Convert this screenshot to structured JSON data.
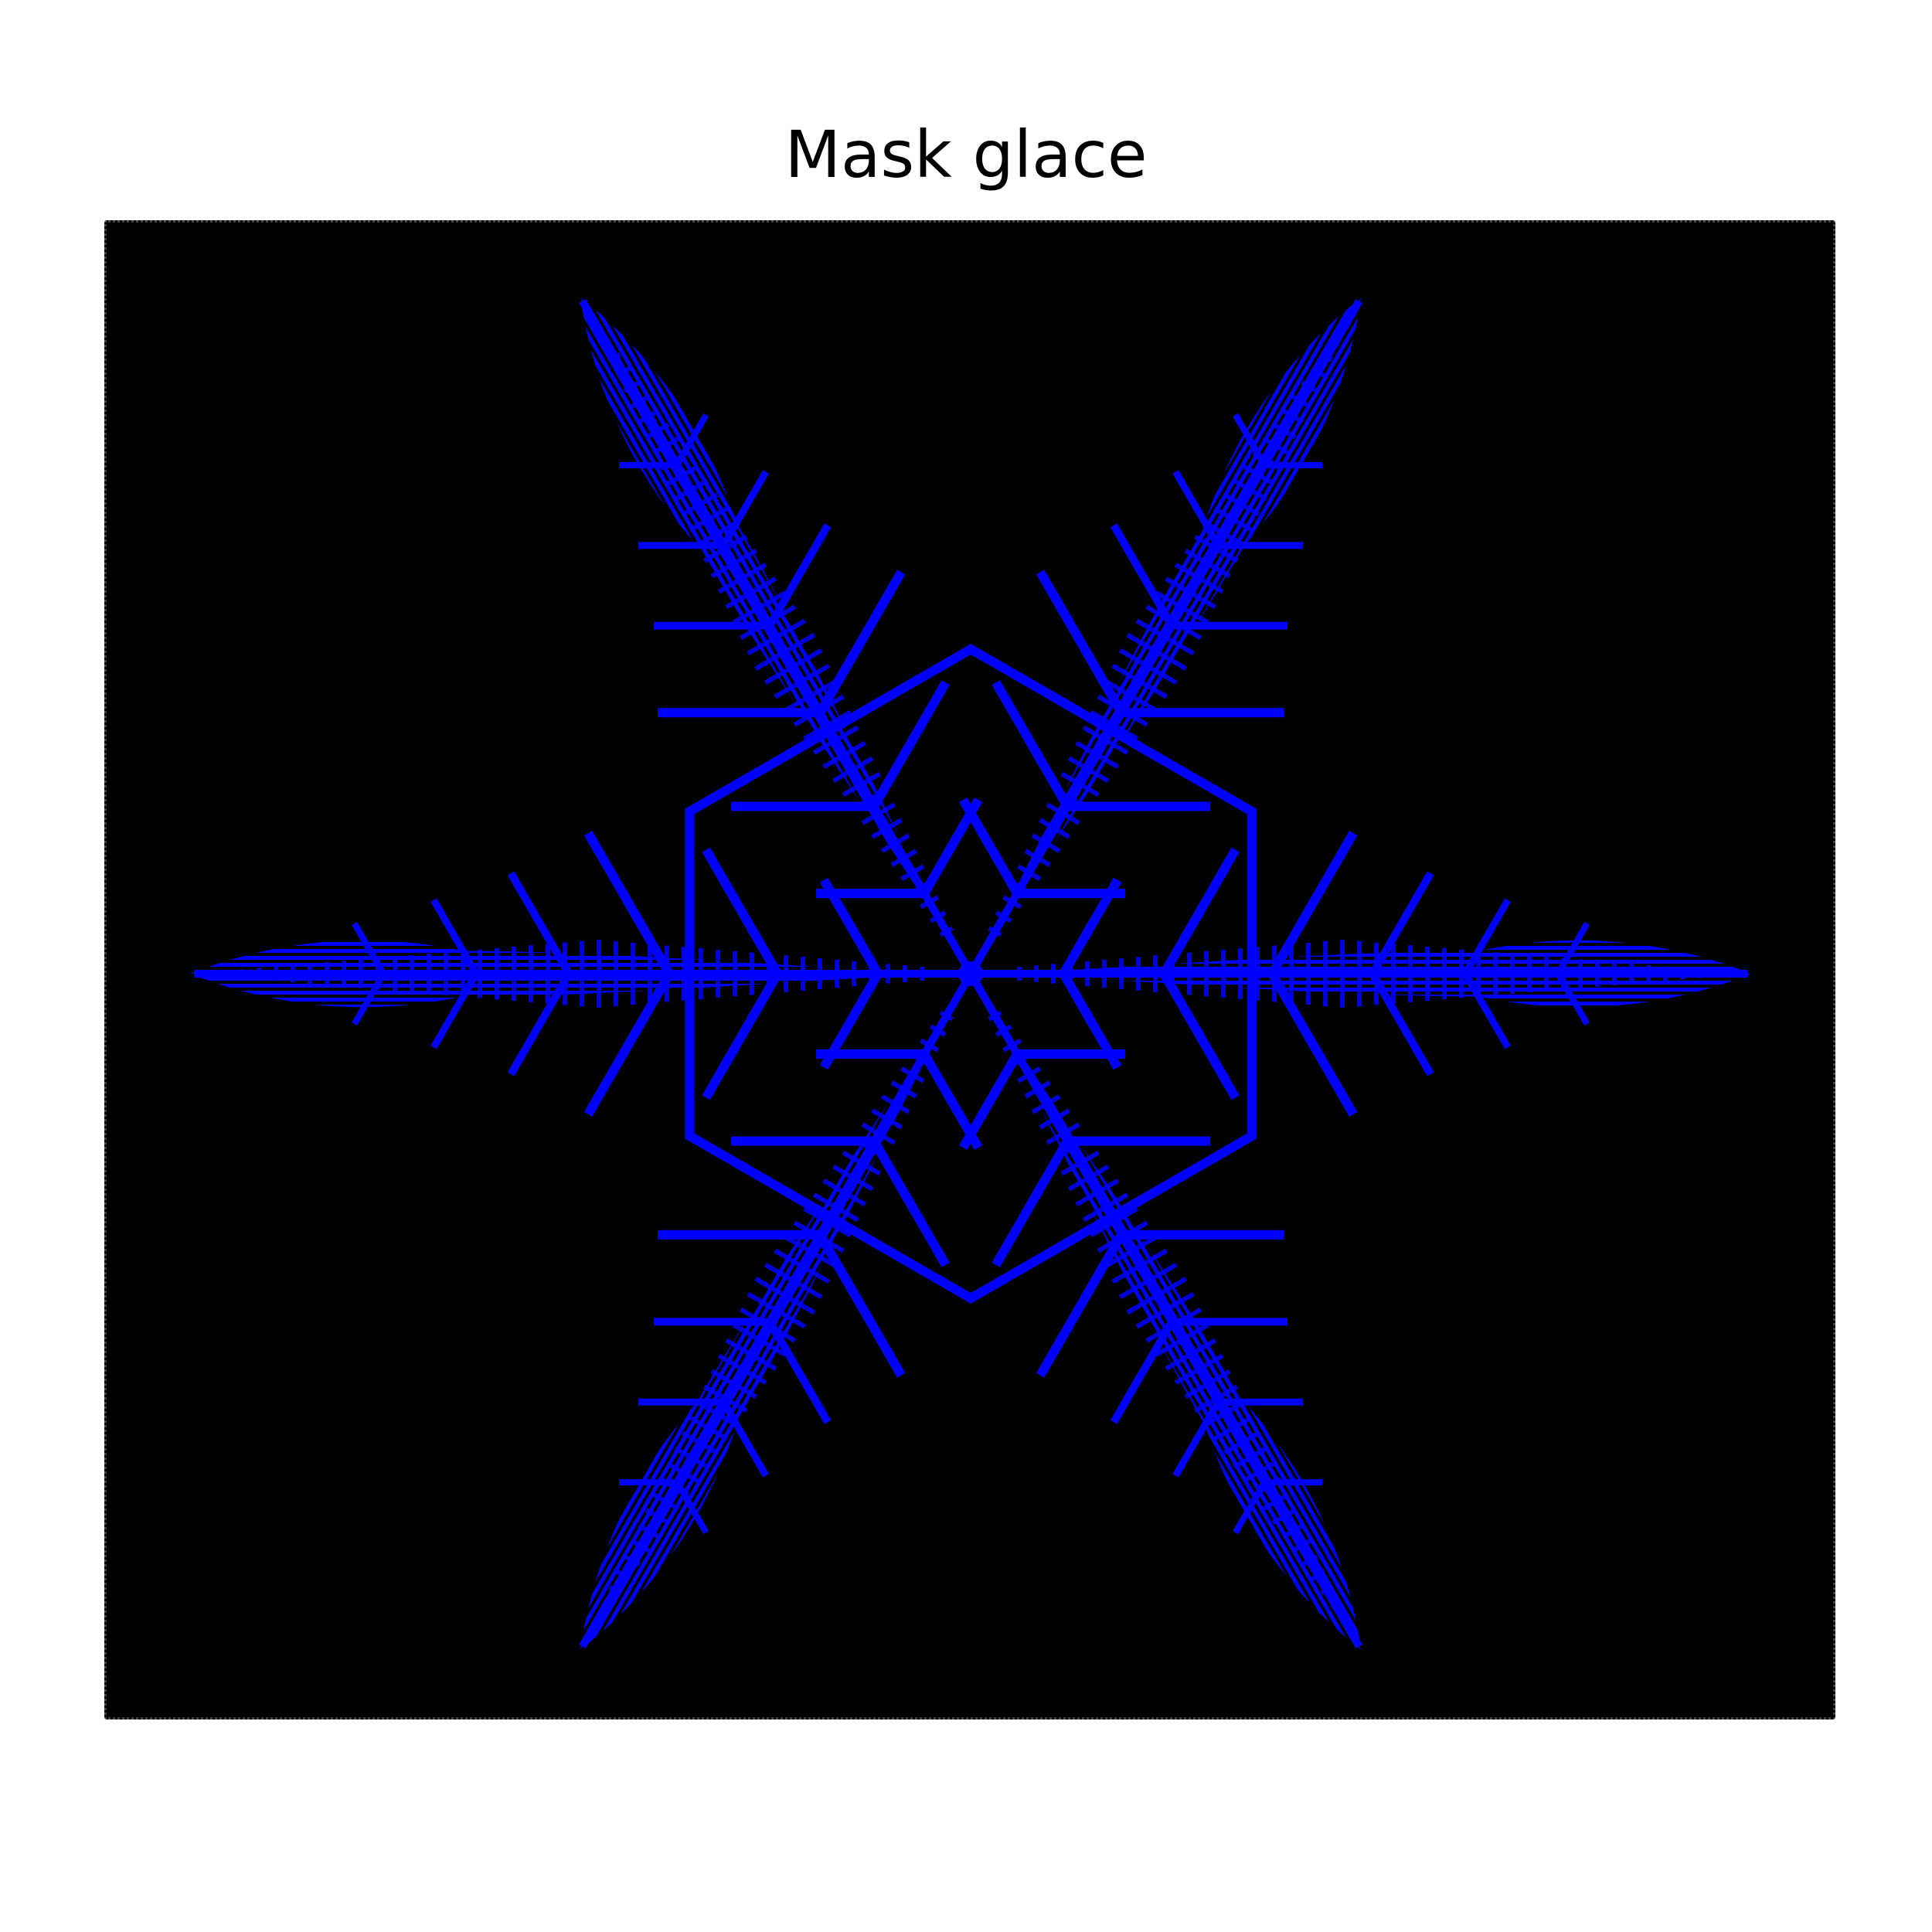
{
  "figure": {
    "title": "Mask glace"
  },
  "image": {
    "subject": "snowflake-mask",
    "background_color": "#000000",
    "mask_color": "#0000ff",
    "figure_background": "#ffffff",
    "symmetry": 6
  }
}
